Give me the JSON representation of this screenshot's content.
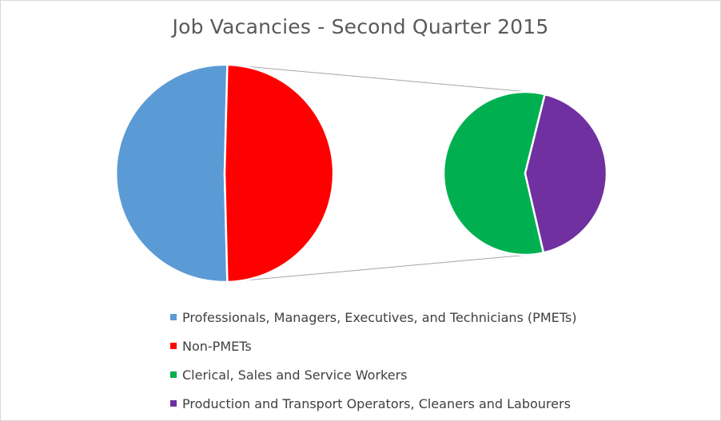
{
  "chart_data": {
    "type": "pie",
    "subtype": "pie-of-pie",
    "title": "Job Vacancies - Second Quarter 2015",
    "main_pie": [
      {
        "name": "Professionals, Managers, Executives, and Technicians (PMETs)",
        "value": 50.8,
        "color": "#5b9bd5"
      },
      {
        "name": "Non-PMETs",
        "value": 49.2,
        "color": "#ff0000"
      }
    ],
    "secondary_pie": {
      "breakdown_of": "Non-PMETs",
      "slices": [
        {
          "name": "Clerical, Sales and Service Workers",
          "value": 57.5,
          "color": "#00b050"
        },
        {
          "name": "Production and Transport Operators, Cleaners and Labourers",
          "value": 42.5,
          "color": "#7030a0"
        }
      ]
    },
    "legend": {
      "position": "bottom",
      "entries": [
        {
          "label": "Professionals, Managers, Executives, and Technicians (PMETs)",
          "color": "#5b9bd5"
        },
        {
          "label": "Non-PMETs",
          "color": "#ff0000"
        },
        {
          "label": "Clerical, Sales and Service Workers",
          "color": "#00b050"
        },
        {
          "label": "Production and Transport Operators, Cleaners and Labourers",
          "color": "#7030a0"
        }
      ]
    },
    "connector_color": "#a6a6a6"
  }
}
